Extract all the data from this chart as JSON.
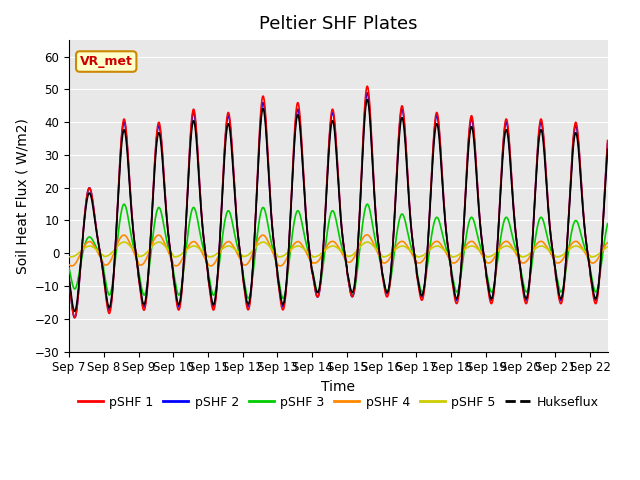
{
  "title": "Peltier SHF Plates",
  "xlabel": "Time",
  "ylabel": "Soil Heat Flux ( W/m2)",
  "ylim": [
    -30,
    65
  ],
  "yticks": [
    -30,
    -20,
    -10,
    0,
    10,
    20,
    30,
    40,
    50,
    60
  ],
  "xlim_end": 15.5,
  "colors": {
    "pSHF1": "#ff0000",
    "pSHF2": "#0000ff",
    "pSHF3": "#00cc00",
    "pSHF4": "#ff8800",
    "pSHF5": "#cccc00",
    "Hukseflux": "#000000"
  },
  "legend_labels": [
    "pSHF 1",
    "pSHF 2",
    "pSHF 3",
    "pSHF 4",
    "pSHF 5",
    "Hukseflux"
  ],
  "annotation_text": "VR_met",
  "annotation_color": "#cc0000",
  "annotation_bg": "#ffffcc",
  "annotation_border": "#cc8800",
  "background_color": "#e8e8e8",
  "title_fontsize": 13,
  "label_fontsize": 10,
  "tick_fontsize": 8.5,
  "peaks1": [
    20,
    41,
    40,
    44,
    43,
    48,
    46,
    44,
    51,
    45,
    43,
    42,
    41,
    41,
    40,
    41
  ],
  "peaks2": [
    20,
    40,
    39,
    43,
    42,
    46,
    44,
    43,
    49,
    44,
    42,
    41,
    40,
    40,
    39,
    40
  ],
  "peaks3": [
    5,
    15,
    14,
    14,
    13,
    14,
    13,
    13,
    15,
    12,
    11,
    11,
    11,
    11,
    10,
    11
  ],
  "peaks4": [
    2,
    3,
    3,
    2,
    2,
    3,
    2,
    2,
    3,
    2,
    2,
    2,
    2,
    2,
    2,
    2
  ],
  "peaks5": [
    2,
    3,
    3,
    2,
    2,
    3,
    2,
    2,
    3,
    2,
    2,
    2,
    2,
    2,
    2,
    2
  ],
  "troughs1": [
    20,
    19,
    18,
    18,
    18,
    18,
    18,
    14,
    14,
    14,
    15,
    16,
    16,
    16,
    16,
    16
  ],
  "troughs2": [
    20,
    18,
    17,
    17,
    17,
    17,
    17,
    14,
    14,
    13,
    14,
    15,
    15,
    15,
    15,
    15
  ],
  "troughs3": [
    11,
    13,
    13,
    13,
    13,
    14,
    14,
    12,
    13,
    12,
    12,
    12,
    12,
    12,
    12,
    12
  ],
  "troughs4": [
    5,
    5,
    5,
    5,
    5,
    5,
    5,
    4,
    4,
    4,
    4,
    4,
    4,
    4,
    4,
    4
  ],
  "troughs5": [
    3,
    3,
    3,
    3,
    3,
    3,
    3,
    3,
    3,
    3,
    3,
    3,
    3,
    3,
    3,
    3
  ]
}
